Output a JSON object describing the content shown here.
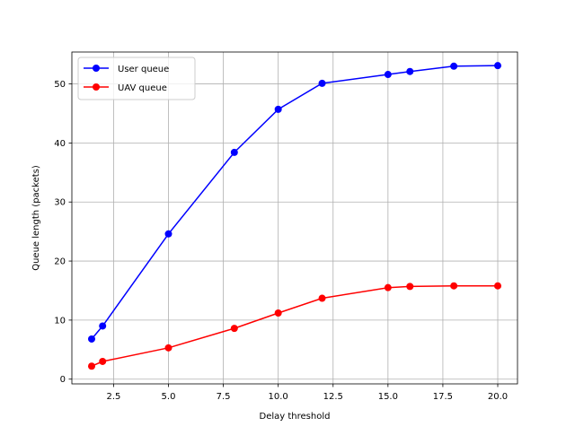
{
  "chart_data": {
    "type": "line",
    "title": "",
    "xlabel": "Delay threshold",
    "ylabel": "Queue length (packets)",
    "xlim": [
      0.6,
      20.9
    ],
    "ylim": [
      -0.8,
      55.4
    ],
    "xticks": [
      2.5,
      5.0,
      7.5,
      10.0,
      12.5,
      15.0,
      17.5,
      20.0
    ],
    "xtick_labels": [
      "2.5",
      "5.0",
      "7.5",
      "10.0",
      "12.5",
      "15.0",
      "17.5",
      "20.0"
    ],
    "yticks": [
      0,
      10,
      20,
      30,
      40,
      50
    ],
    "ytick_labels": [
      "0",
      "10",
      "20",
      "30",
      "40",
      "50"
    ],
    "grid": true,
    "legend_position": "top-left",
    "x": [
      1.5,
      2,
      5,
      8,
      10,
      12,
      15,
      16,
      18,
      20
    ],
    "series": [
      {
        "name": "User queue",
        "color": "#0000ff",
        "marker": "circle",
        "values": [
          6.8,
          9.0,
          24.6,
          38.4,
          45.7,
          50.1,
          51.6,
          52.1,
          53.0,
          53.1
        ]
      },
      {
        "name": "UAV queue",
        "color": "#ff0000",
        "marker": "circle",
        "values": [
          2.2,
          3.0,
          5.3,
          8.6,
          11.2,
          13.7,
          15.5,
          15.7,
          15.8,
          15.8
        ]
      }
    ]
  }
}
